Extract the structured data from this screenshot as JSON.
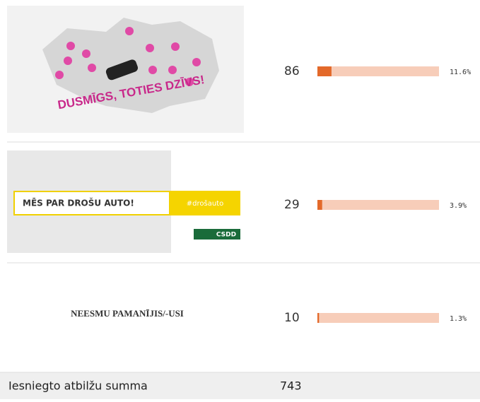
{
  "rows": [
    {
      "image_text": "DUSMĪGS, TOTIES DZĪVS!",
      "count": 86,
      "percent": "11.6%"
    },
    {
      "image_text": "MĒS PAR DROŠU AUTO!",
      "image_tag": "#drošauto",
      "image_logo": "CSDD",
      "count": 29,
      "percent": "3.9%"
    },
    {
      "label": "NEESMU PAMANĪJIS/-USI",
      "count": 10,
      "percent": "1.3%"
    }
  ],
  "footer": {
    "label": "Iesniegto atbilžu summa",
    "total": 743
  }
}
